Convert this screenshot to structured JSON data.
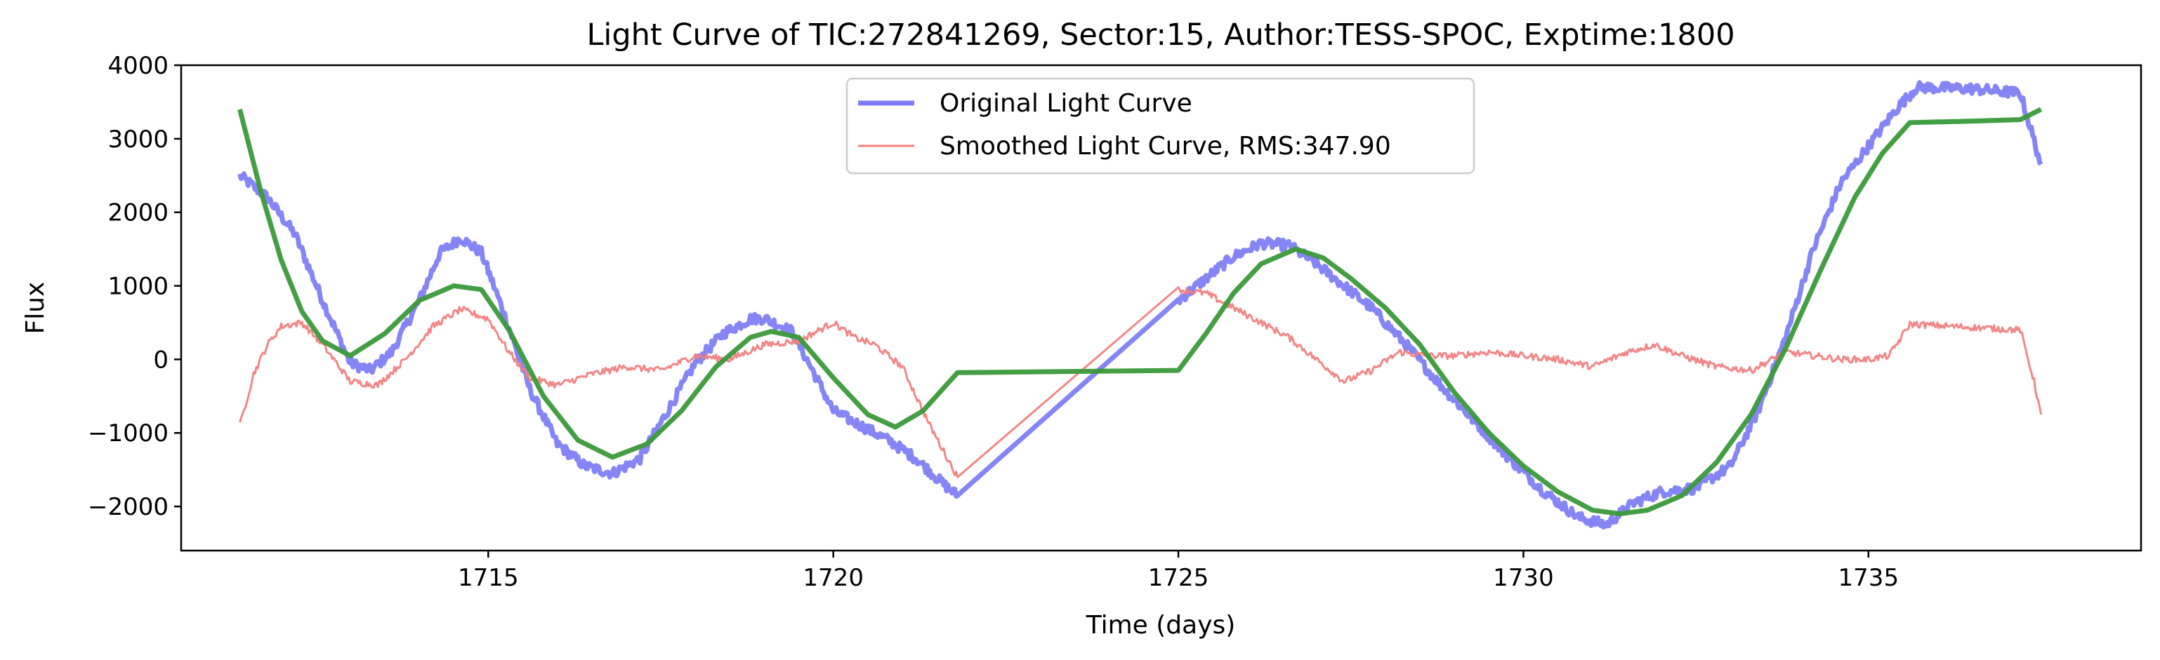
{
  "chart_data": {
    "type": "line",
    "title": "Light Curve of TIC:272841269, Sector:15, Author:TESS-SPOC, Exptime:1800",
    "xlabel": "Time (days)",
    "ylabel": "Flux",
    "xlim": [
      1710.55,
      1738.95
    ],
    "ylim": [
      -2600,
      4000
    ],
    "xticks": [
      1715,
      1720,
      1725,
      1730,
      1735
    ],
    "yticks": [
      -2000,
      -1000,
      0,
      1000,
      2000,
      3000,
      4000
    ],
    "xtick_labels": [
      "1715",
      "1720",
      "1725",
      "1730",
      "1735"
    ],
    "ytick_labels": [
      "−2000",
      "−1000",
      "0",
      "1000",
      "2000",
      "3000",
      "4000"
    ],
    "grid": false,
    "legend": {
      "position": "top-center",
      "frame": true
    },
    "series": [
      {
        "name": "Original Light Curve",
        "color": "#7b7bf5",
        "line_width": 7,
        "noise": 70,
        "x": [
          1711.4,
          1711.8,
          1712.2,
          1712.6,
          1713.0,
          1713.3,
          1713.6,
          1714.0,
          1714.3,
          1714.6,
          1714.9,
          1715.2,
          1715.6,
          1716.0,
          1716.4,
          1716.8,
          1717.2,
          1717.6,
          1718.0,
          1718.4,
          1718.8,
          1719.0,
          1719.4,
          1719.7,
          1720.0,
          1720.4,
          1720.8,
          1721.2,
          1721.6,
          1721.8,
          1725.0,
          1725.4,
          1725.8,
          1726.2,
          1726.6,
          1727.0,
          1727.4,
          1727.8,
          1728.3,
          1728.8,
          1729.3,
          1729.8,
          1730.3,
          1730.8,
          1731.2,
          1731.6,
          1732.0,
          1732.5,
          1733.0,
          1733.4,
          1733.8,
          1734.2,
          1734.6,
          1735.0,
          1735.4,
          1735.7,
          1736.5,
          1737.2,
          1737.5
        ],
        "y": [
          2500,
          2200,
          1700,
          800,
          -50,
          -150,
          100,
          800,
          1450,
          1650,
          1450,
          700,
          -400,
          -1150,
          -1450,
          -1550,
          -1350,
          -700,
          -50,
          350,
          550,
          560,
          380,
          -150,
          -700,
          -900,
          -1100,
          -1350,
          -1700,
          -1850,
          800,
          1100,
          1400,
          1580,
          1550,
          1300,
          1000,
          700,
          200,
          -350,
          -850,
          -1350,
          -1800,
          -2150,
          -2250,
          -1950,
          -1800,
          -1750,
          -1450,
          -700,
          300,
          1500,
          2400,
          2900,
          3400,
          3700,
          3680,
          3620,
          2650
        ]
      },
      {
        "name": "Smoothed Light Curve, RMS:347.90",
        "color": "#f28080",
        "line_width": 3,
        "noise": 45,
        "x": [
          1711.4,
          1711.6,
          1711.8,
          1712.0,
          1712.3,
          1712.6,
          1713.0,
          1713.4,
          1713.8,
          1714.2,
          1714.6,
          1715.0,
          1715.3,
          1715.6,
          1716.0,
          1716.5,
          1717.0,
          1717.5,
          1718.0,
          1718.5,
          1719.0,
          1719.5,
          1720.0,
          1720.3,
          1720.6,
          1721.0,
          1721.4,
          1721.8,
          1725.0,
          1725.4,
          1725.8,
          1726.2,
          1726.6,
          1727.0,
          1727.4,
          1727.8,
          1728.2,
          1728.6,
          1729.0,
          1729.5,
          1730.0,
          1730.5,
          1731.0,
          1731.5,
          1731.9,
          1732.3,
          1732.8,
          1733.3,
          1733.8,
          1734.2,
          1734.6,
          1735.0,
          1735.3,
          1735.6,
          1736.2,
          1737.2,
          1737.4,
          1737.5
        ],
        "y": [
          -900,
          -200,
          200,
          450,
          500,
          200,
          -300,
          -350,
          0,
          450,
          680,
          550,
          100,
          -250,
          -350,
          -200,
          -100,
          -150,
          50,
          0,
          200,
          250,
          500,
          300,
          200,
          -100,
          -900,
          -1600,
          950,
          900,
          700,
          500,
          300,
          0,
          -300,
          -150,
          100,
          50,
          50,
          100,
          50,
          0,
          -100,
          100,
          200,
          50,
          -100,
          -150,
          100,
          50,
          0,
          0,
          50,
          480,
          450,
          400,
          -300,
          -750
        ]
      },
      {
        "name": "",
        "color": "#3a993a",
        "line_width": 7,
        "noise": 0,
        "x": [
          1711.4,
          1711.7,
          1712.0,
          1712.3,
          1712.6,
          1713.0,
          1713.5,
          1714.0,
          1714.5,
          1714.9,
          1715.3,
          1715.8,
          1716.3,
          1716.8,
          1717.3,
          1717.8,
          1718.3,
          1718.8,
          1719.1,
          1719.5,
          1720.0,
          1720.5,
          1720.9,
          1721.3,
          1721.8,
          1725.0,
          1725.4,
          1725.8,
          1726.2,
          1726.7,
          1727.1,
          1727.5,
          1728.0,
          1728.5,
          1729.0,
          1729.5,
          1730.0,
          1730.5,
          1731.0,
          1731.4,
          1731.8,
          1732.3,
          1732.8,
          1733.3,
          1733.8,
          1734.3,
          1734.8,
          1735.2,
          1735.6,
          1736.5,
          1737.2,
          1737.5
        ],
        "y": [
          3400,
          2300,
          1350,
          650,
          250,
          50,
          350,
          800,
          1000,
          950,
          400,
          -500,
          -1100,
          -1330,
          -1150,
          -700,
          -100,
          300,
          380,
          300,
          -250,
          -750,
          -920,
          -700,
          -180,
          -150,
          350,
          900,
          1300,
          1500,
          1380,
          1100,
          700,
          200,
          -450,
          -1000,
          -1450,
          -1800,
          -2050,
          -2100,
          -2050,
          -1850,
          -1400,
          -750,
          150,
          1200,
          2200,
          2800,
          3220,
          3240,
          3260,
          3400
        ]
      }
    ]
  }
}
